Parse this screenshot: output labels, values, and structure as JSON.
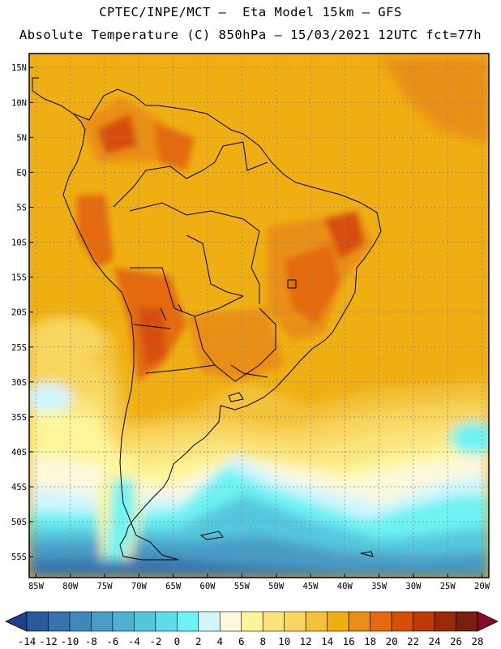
{
  "header": {
    "line1": "CPTEC/INPE/MCT –  Eta Model 15km – GFS",
    "line2": "Absolute Temperature (C) 850hPa – 15/03/2021 12UTC fct=77h"
  },
  "map": {
    "lon_range": [
      -86,
      -19
    ],
    "lat_range": [
      -58,
      17
    ],
    "lat_ticks": [
      {
        "value": 15,
        "label": "15N"
      },
      {
        "value": 10,
        "label": "10N"
      },
      {
        "value": 5,
        "label": "5N"
      },
      {
        "value": 0,
        "label": "EQ"
      },
      {
        "value": -5,
        "label": "5S"
      },
      {
        "value": -10,
        "label": "10S"
      },
      {
        "value": -15,
        "label": "15S"
      },
      {
        "value": -20,
        "label": "20S"
      },
      {
        "value": -25,
        "label": "25S"
      },
      {
        "value": -30,
        "label": "30S"
      },
      {
        "value": -35,
        "label": "35S"
      },
      {
        "value": -40,
        "label": "40S"
      },
      {
        "value": -45,
        "label": "45S"
      },
      {
        "value": -50,
        "label": "50S"
      },
      {
        "value": -55,
        "label": "55S"
      }
    ],
    "lon_ticks": [
      {
        "value": -85,
        "label": "85W"
      },
      {
        "value": -80,
        "label": "80W"
      },
      {
        "value": -75,
        "label": "75W"
      },
      {
        "value": -70,
        "label": "70W"
      },
      {
        "value": -65,
        "label": "65W"
      },
      {
        "value": -60,
        "label": "60W"
      },
      {
        "value": -55,
        "label": "55W"
      },
      {
        "value": -50,
        "label": "50W"
      },
      {
        "value": -45,
        "label": "45W"
      },
      {
        "value": -40,
        "label": "40W"
      },
      {
        "value": -35,
        "label": "35W"
      },
      {
        "value": -30,
        "label": "30W"
      },
      {
        "value": -25,
        "label": "25W"
      },
      {
        "value": -20,
        "label": "20W"
      }
    ],
    "gridlines": true
  },
  "colorbar": {
    "labels": [
      "-14",
      "-12",
      "-10",
      "-8",
      "-6",
      "-4",
      "-2",
      "0",
      "2",
      "4",
      "6",
      "8",
      "10",
      "12",
      "14",
      "16",
      "18",
      "20",
      "22",
      "24",
      "26",
      "28"
    ],
    "colors": [
      "#1f3f8f",
      "#2a5a9e",
      "#3572ae",
      "#3f88bb",
      "#4a9cc6",
      "#4eb1d2",
      "#55c7dd",
      "#5fdde8",
      "#6ef2f3",
      "#d2f6fb",
      "#fdf8dc",
      "#fdf59a",
      "#fbe47c",
      "#f8d65f",
      "#f3c23a",
      "#efaf12",
      "#ea8f16",
      "#e46a0d",
      "#d64e08",
      "#bd3a06",
      "#9a2a06",
      "#7a1f0c",
      "#8a0a25"
    ]
  }
}
